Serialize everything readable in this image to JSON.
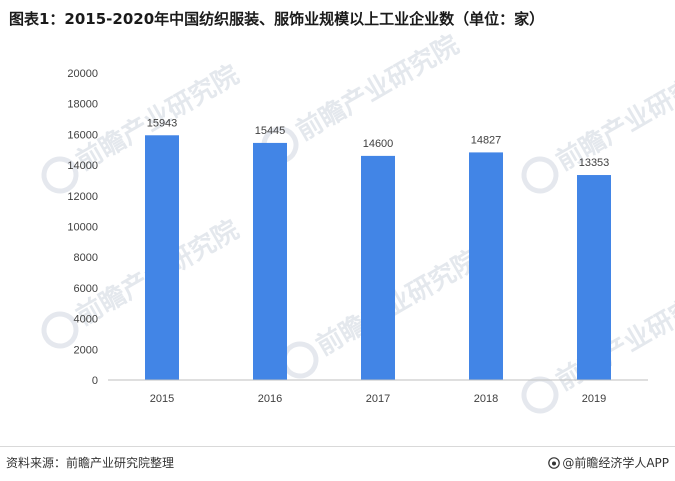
{
  "title": "图表1：2015-2020年中国纺织服装、服饰业规模以上工业企业数（单位：家）",
  "footer": {
    "source": "资料来源：前瞻产业研究院整理",
    "brand": "@前瞻经济学人APP",
    "brand_icon": "weibo-icon"
  },
  "watermark": {
    "text": "前瞻产业研究院"
  },
  "colors": {
    "bar": "#4285e6",
    "axis": "#bfbfbf",
    "label": "#404040",
    "watermark": "#cfd6e0"
  },
  "chart_data": {
    "type": "bar",
    "title": "",
    "categories": [
      "2015",
      "2016",
      "2017",
      "2018",
      "2019"
    ],
    "values": [
      15943,
      15445,
      14600,
      14827,
      13353
    ],
    "data_labels": [
      "15943",
      "15445",
      "14600",
      "14827",
      "13353"
    ],
    "xlabel": "",
    "ylabel": "",
    "ylim": [
      0,
      20000
    ],
    "yticks": [
      "0",
      "2000",
      "4000",
      "6000",
      "8000",
      "10000",
      "12000",
      "14000",
      "16000",
      "18000",
      "20000"
    ],
    "grid": false,
    "legend": "none"
  }
}
